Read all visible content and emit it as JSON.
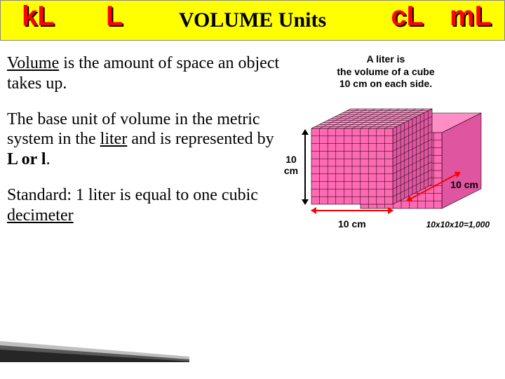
{
  "header": {
    "title": "VOLUME Units",
    "units": {
      "kl": "kL",
      "l": "L",
      "cl": "cL",
      "ml": "mL"
    },
    "bg_color": "#ffff00",
    "unit_color": "#ff0000"
  },
  "body": {
    "p1_underline": "Volume",
    "p1_rest": " is the amount of space an object takes up.",
    "p2_a": "The base unit of volume in the metric system in the ",
    "p2_liter": "liter",
    "p2_b": " and is represented by ",
    "p2_bold": "L or l",
    "p2_c": ".",
    "p3_a": "Standard: 1 liter is equal to one cubic ",
    "p3_dec": "decimeter"
  },
  "diagram": {
    "title_l1": "A liter is",
    "title_l2": "the volume of a cube",
    "title_l3": "10 cm on each side.",
    "dim_left_l1": "10",
    "dim_left_l2": "cm",
    "dim_bottom": "10 cm",
    "dim_right": "10 cm",
    "formula": "10x10x10=1,000",
    "cube": {
      "fill": "#ff69b4",
      "top_fill": "#ff8dc6",
      "side_fill": "#e055a0",
      "grid": "#000000",
      "rows": 10,
      "cols": 10
    }
  }
}
